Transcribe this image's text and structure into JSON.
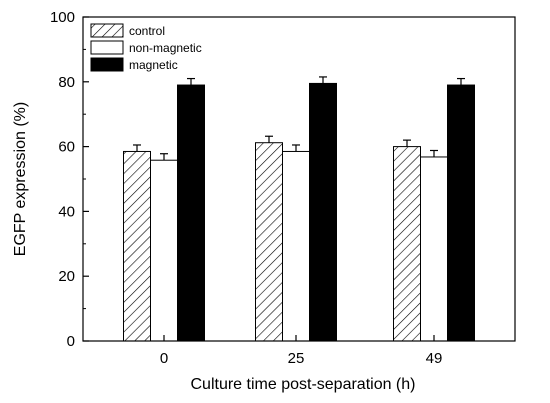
{
  "chart_data": {
    "type": "bar",
    "title": "",
    "xlabel": "Culture time post-separation (h)",
    "ylabel": "EGFP expression (%)",
    "categories": [
      "0",
      "25",
      "49"
    ],
    "ylim": [
      0,
      100
    ],
    "yticks": [
      0,
      20,
      40,
      60,
      80,
      100
    ],
    "series": [
      {
        "name": "control",
        "fill": "hatch",
        "values": [
          58.5,
          61.2,
          60.0
        ],
        "errors": [
          2.0,
          2.0,
          2.0
        ]
      },
      {
        "name": "non-magnetic",
        "fill": "#ffffff",
        "values": [
          55.8,
          58.5,
          56.8
        ],
        "errors": [
          2.0,
          2.0,
          2.0
        ]
      },
      {
        "name": "magnetic",
        "fill": "#000000",
        "values": [
          79.0,
          79.5,
          79.0
        ],
        "errors": [
          2.0,
          2.0,
          2.0
        ]
      }
    ],
    "legend_position": "top-left",
    "grid": false
  }
}
